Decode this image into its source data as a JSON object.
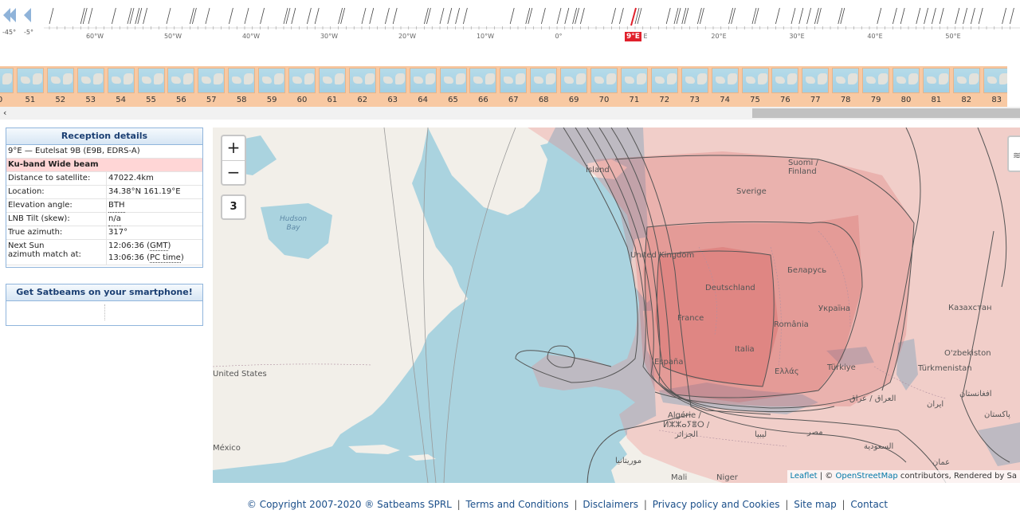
{
  "orbit_nav": {
    "step_left_large": "-45°",
    "step_left_small": "-5°",
    "degree_labels": [
      "60°W",
      "50°W",
      "40°W",
      "30°W",
      "20°W",
      "10°W",
      "0°",
      "",
      "20°E",
      "30°E",
      "40°E",
      "50°E"
    ],
    "selected_label": "9°E",
    "selected_suffix": "E"
  },
  "thumbnails": {
    "labels": [
      "0",
      "51",
      "52",
      "53",
      "54",
      "55",
      "56",
      "57",
      "58",
      "59",
      "60",
      "61",
      "62",
      "63",
      "64",
      "65",
      "66",
      "67",
      "68",
      "69",
      "70",
      "71",
      "72",
      "73",
      "74",
      "75",
      "76",
      "77",
      "78",
      "79",
      "80",
      "81",
      "82",
      "83"
    ]
  },
  "scroll": {
    "left_arrow": "‹"
  },
  "reception": {
    "title": "Reception details",
    "satellite": "9°E — Eutelsat 9B (E9B, EDRS-A)",
    "beam": "Ku-band Wide beam",
    "rows": [
      {
        "label": "Distance to satellite:",
        "value": "47022.4km"
      },
      {
        "label": "Location:",
        "value": "34.38°N 161.19°E"
      },
      {
        "label": "Elevation angle:",
        "value": "BTH"
      },
      {
        "label": "LNB Tilt (skew):",
        "value": "n/a"
      },
      {
        "label": "True azimuth:",
        "value": "317°"
      }
    ],
    "sun_label_1": "Next Sun",
    "sun_label_2": "azimuth match at:",
    "sun_time_1": "12:06:36",
    "sun_tz_1": "GMT",
    "sun_time_2": "13:06:36",
    "sun_tz_2": "PC time"
  },
  "phone_panel": {
    "title": "Get Satbeams on your smartphone!"
  },
  "map": {
    "zoom_in": "+",
    "zoom_out": "−",
    "level": "3",
    "layers_icon": "layers-icon",
    "labels": {
      "island": "Ísland",
      "suomi": "Suomi /",
      "finland": "Finland",
      "sverige": "Sverige",
      "hudson1": "Hudson",
      "hudson2": "Bay",
      "uk": "United Kingdom",
      "deutschland": "Deutschland",
      "belarus": "Беларусь",
      "france": "France",
      "ukraine": "Україна",
      "romania": "România",
      "kazakhstan": "Казахстан",
      "italia": "Italia",
      "espana": "España",
      "ellas": "Ελλάς",
      "turkiye": "Türkiye",
      "usa": "United States",
      "uzbek": "O'zbekiston",
      "turkmen": "Türkmenistan",
      "iraq": "العراق / عراق",
      "afghan": "افغانستان",
      "iran": "ایران",
      "pakistan": "پاکستان",
      "algeria1": "Algérie /",
      "algeria2": "ⵍⵣⵣⴰⵢⴻⵔ /",
      "algeria3": "الجزائر",
      "libya": "ليبيا",
      "egypt": "مصر",
      "saudi": "السعودية",
      "oman": "عمان",
      "mexico": "México",
      "mauritania": "موريتانيا",
      "mali": "Mali",
      "niger": "Niger"
    },
    "attribution": {
      "leaflet": "Leaflet",
      "sep": " | © ",
      "osm": "OpenStreetMap",
      "rest": " contributors, Rendered by Sa"
    }
  },
  "footer": {
    "copyright": "© Copyright 2007-2020 ® Satbeams SPRL",
    "links": [
      "Terms and Conditions",
      "Disclaimers",
      "Privacy policy and Cookies",
      "Site map",
      "Contact"
    ]
  }
}
